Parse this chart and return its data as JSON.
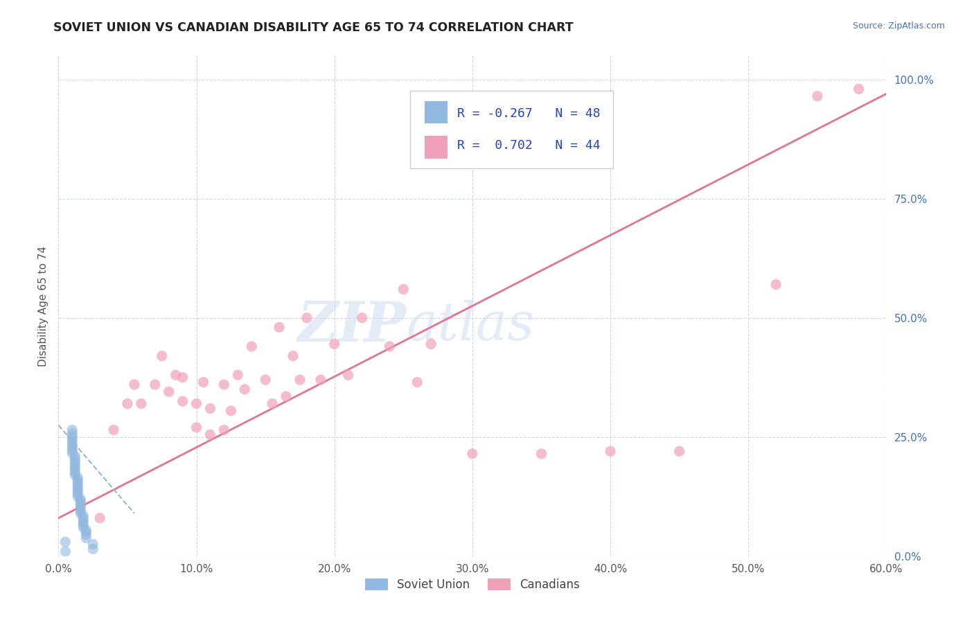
{
  "title": "SOVIET UNION VS CANADIAN DISABILITY AGE 65 TO 74 CORRELATION CHART",
  "source": "Source: ZipAtlas.com",
  "ylabel": "Disability Age 65 to 74",
  "xlim": [
    0.0,
    0.6
  ],
  "ylim": [
    0.0,
    1.05
  ],
  "background_color": "#ffffff",
  "grid_color": "#d0d8e8",
  "soviet_color": "#90b8e0",
  "canadian_color": "#f0a0b8",
  "soviet_line_color": "#90b8e0",
  "canadian_line_color": "#e87090",
  "R_soviet": -0.267,
  "N_soviet": 48,
  "R_canadian": 0.702,
  "N_canadian": 44,
  "soviet_x": [
    0.005,
    0.005,
    0.01,
    0.01,
    0.01,
    0.01,
    0.01,
    0.01,
    0.01,
    0.01,
    0.01,
    0.012,
    0.012,
    0.012,
    0.012,
    0.012,
    0.012,
    0.012,
    0.012,
    0.012,
    0.014,
    0.014,
    0.014,
    0.014,
    0.014,
    0.014,
    0.014,
    0.014,
    0.014,
    0.016,
    0.016,
    0.016,
    0.016,
    0.016,
    0.016,
    0.016,
    0.018,
    0.018,
    0.018,
    0.018,
    0.018,
    0.018,
    0.02,
    0.02,
    0.02,
    0.02,
    0.025,
    0.025
  ],
  "soviet_y": [
    0.01,
    0.03,
    0.265,
    0.258,
    0.252,
    0.246,
    0.24,
    0.234,
    0.228,
    0.222,
    0.216,
    0.21,
    0.205,
    0.2,
    0.195,
    0.19,
    0.185,
    0.18,
    0.175,
    0.17,
    0.165,
    0.16,
    0.155,
    0.15,
    0.145,
    0.14,
    0.135,
    0.13,
    0.125,
    0.12,
    0.115,
    0.11,
    0.105,
    0.1,
    0.095,
    0.09,
    0.085,
    0.08,
    0.075,
    0.07,
    0.065,
    0.06,
    0.055,
    0.05,
    0.045,
    0.038,
    0.025,
    0.015
  ],
  "canadian_x": [
    0.03,
    0.04,
    0.05,
    0.055,
    0.06,
    0.07,
    0.075,
    0.08,
    0.085,
    0.09,
    0.09,
    0.1,
    0.1,
    0.105,
    0.11,
    0.11,
    0.12,
    0.12,
    0.125,
    0.13,
    0.135,
    0.14,
    0.15,
    0.155,
    0.16,
    0.165,
    0.17,
    0.175,
    0.18,
    0.19,
    0.2,
    0.21,
    0.22,
    0.24,
    0.25,
    0.26,
    0.27,
    0.3,
    0.35,
    0.4,
    0.45,
    0.52,
    0.55,
    0.58
  ],
  "canadian_y": [
    0.08,
    0.265,
    0.32,
    0.36,
    0.32,
    0.36,
    0.42,
    0.345,
    0.38,
    0.325,
    0.375,
    0.27,
    0.32,
    0.365,
    0.255,
    0.31,
    0.265,
    0.36,
    0.305,
    0.38,
    0.35,
    0.44,
    0.37,
    0.32,
    0.48,
    0.335,
    0.42,
    0.37,
    0.5,
    0.37,
    0.445,
    0.38,
    0.5,
    0.44,
    0.56,
    0.365,
    0.445,
    0.215,
    0.215,
    0.22,
    0.22,
    0.57,
    0.965,
    0.98
  ],
  "canadian_line_x": [
    0.0,
    0.6
  ],
  "canadian_line_y": [
    0.08,
    0.97
  ],
  "soviet_line_x": [
    0.0,
    0.055
  ],
  "soviet_line_y": [
    0.275,
    0.09
  ],
  "legend_R_color": "#2244cc"
}
